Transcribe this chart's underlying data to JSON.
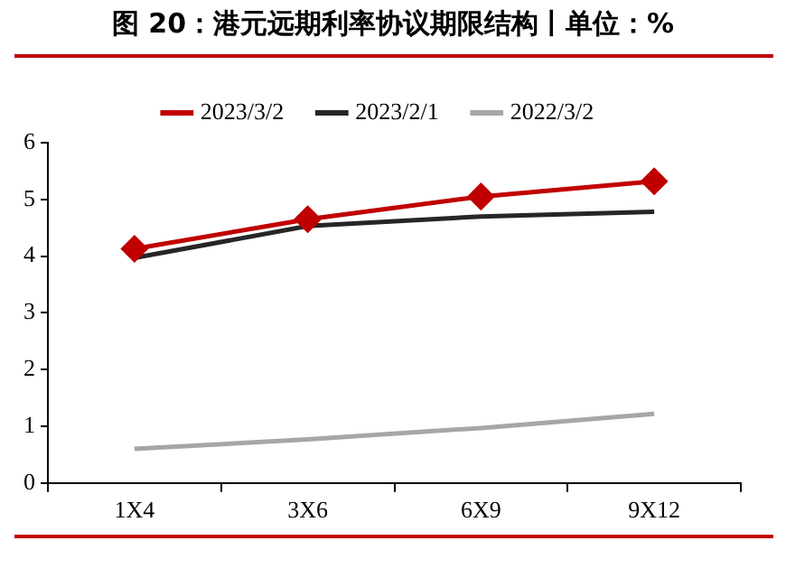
{
  "chart_data": {
    "type": "line",
    "title": "图 20：港元远期利率协议期限结构丨单位：%",
    "categories": [
      "1X4",
      "3X6",
      "6X9",
      "9X12"
    ],
    "series": [
      {
        "name": "2023/3/2",
        "color": "#c00000",
        "values": [
          4.13,
          4.65,
          5.05,
          5.32
        ],
        "marker": "diamond"
      },
      {
        "name": "2023/2/1",
        "color": "#262626",
        "values": [
          3.97,
          4.53,
          4.7,
          4.78
        ],
        "marker": "none"
      },
      {
        "name": "2022/3/2",
        "color": "#a6a6a6",
        "values": [
          0.6,
          0.77,
          0.97,
          1.22
        ],
        "marker": "none"
      }
    ],
    "ylim": [
      0,
      6
    ],
    "yticks": [
      0,
      1,
      2,
      3,
      4,
      5,
      6
    ],
    "grid": false,
    "legend": "top",
    "line_style": "solid"
  }
}
